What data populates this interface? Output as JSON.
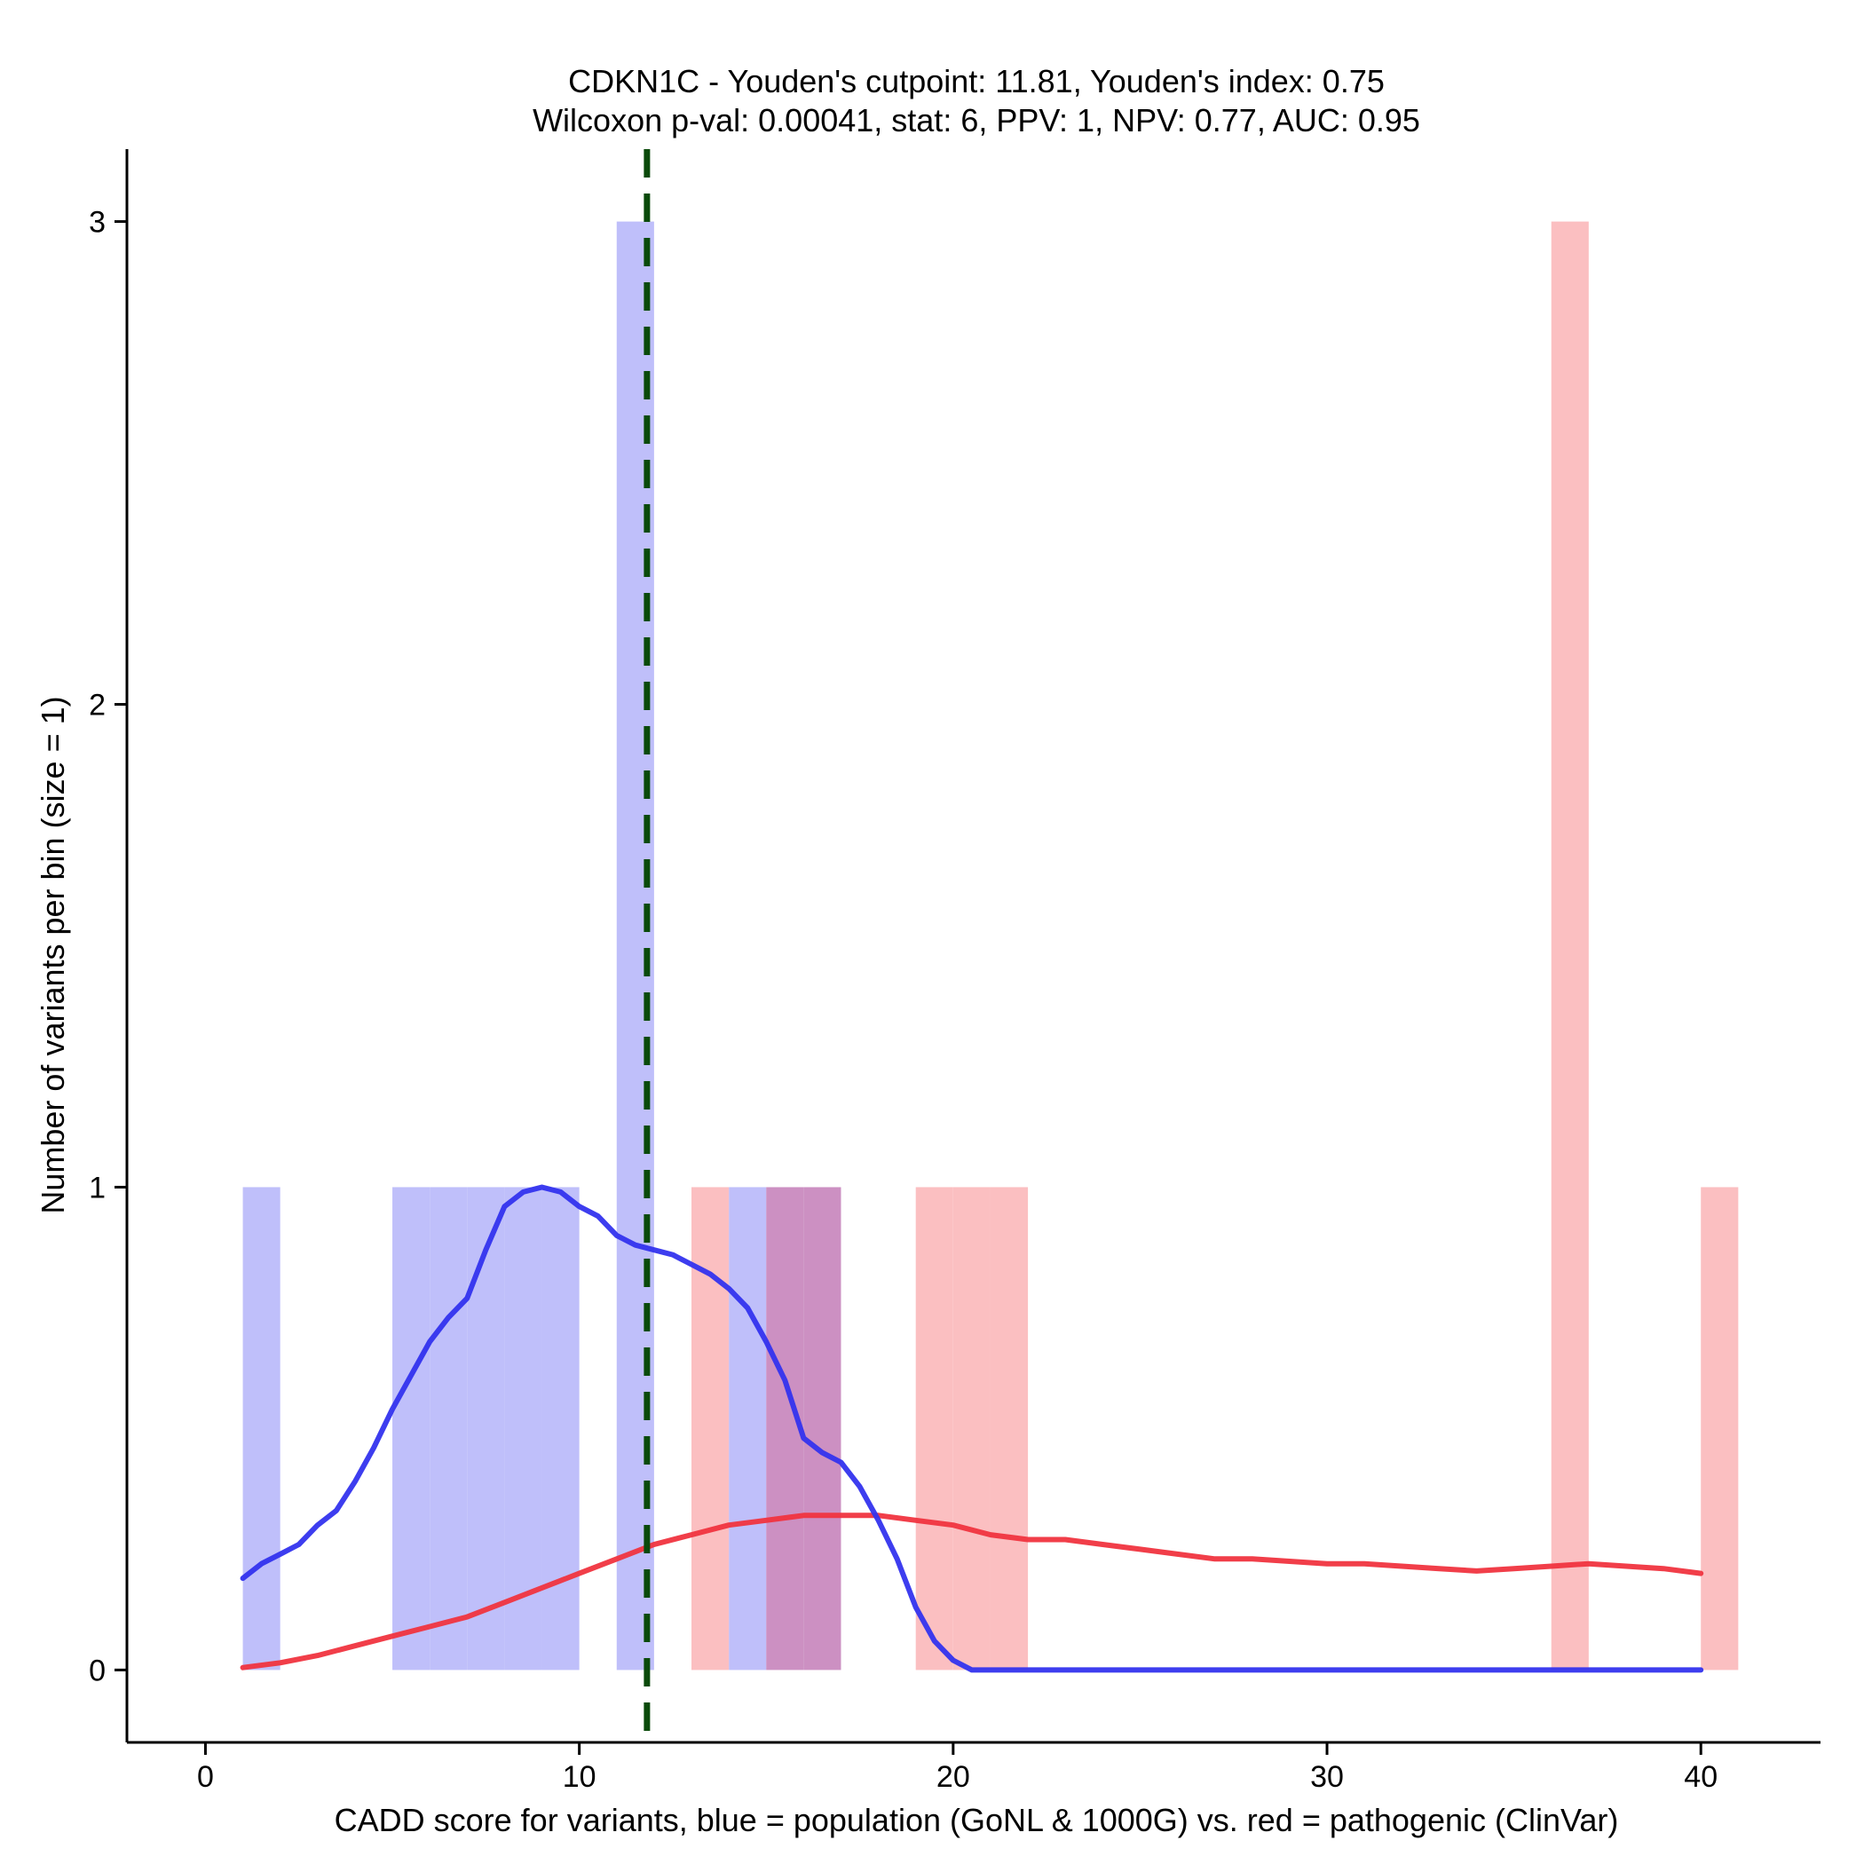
{
  "chart_data": {
    "type": "bar",
    "title_line1": "CDKN1C - Youden's cutpoint: 11.81, Youden's index: 0.75",
    "title_line2": "Wilcoxon p-val: 0.00041, stat: 6, PPV: 1, NPV: 0.77, AUC: 0.95",
    "xlabel": "CADD score for variants, blue = population (GoNL & 1000G) vs. red = pathogenic (ClinVar)",
    "ylabel": "Number of variants per bin (size = 1)",
    "xlim": [
      -2.1,
      43.2
    ],
    "ylim": [
      -0.15,
      3.15
    ],
    "x_ticks": [
      0,
      10,
      20,
      30,
      40
    ],
    "y_ticks": [
      0,
      1,
      2,
      3
    ],
    "cutpoint": 11.81,
    "colors": {
      "population_bar": "#bfbffa",
      "pathogenic_bar": "#fbbfc1",
      "overlap_bar": "#cc90c2",
      "population_density": "#3333ee",
      "pathogenic_density": "#f0343f",
      "cutpoint_line": "#0a4a0a"
    },
    "series": [
      {
        "name": "population",
        "bins": [
          {
            "x0": 1,
            "x1": 2,
            "count": 1
          },
          {
            "x0": 5,
            "x1": 6,
            "count": 1
          },
          {
            "x0": 6,
            "x1": 7,
            "count": 1
          },
          {
            "x0": 7,
            "x1": 8,
            "count": 1
          },
          {
            "x0": 8,
            "x1": 9,
            "count": 1
          },
          {
            "x0": 9,
            "x1": 10,
            "count": 1
          },
          {
            "x0": 11,
            "x1": 12,
            "count": 3
          },
          {
            "x0": 14,
            "x1": 15,
            "count": 1
          },
          {
            "x0": 15,
            "x1": 16,
            "count": 1
          },
          {
            "x0": 16,
            "x1": 17,
            "count": 1
          }
        ],
        "density": {
          "x": [
            1,
            1.5,
            2,
            2.5,
            3,
            3.5,
            4,
            4.5,
            5,
            5.5,
            6,
            6.5,
            7,
            7.5,
            8,
            8.5,
            9,
            9.5,
            10,
            10.5,
            11,
            11.5,
            12,
            12.5,
            13,
            13.5,
            14,
            14.5,
            15,
            15.5,
            16,
            16.5,
            17,
            17.5,
            18,
            18.5,
            19,
            19.5,
            20,
            20.5,
            21,
            25,
            30,
            35,
            40
          ],
          "y": [
            0.19,
            0.22,
            0.24,
            0.26,
            0.3,
            0.33,
            0.39,
            0.46,
            0.54,
            0.61,
            0.68,
            0.73,
            0.77,
            0.87,
            0.96,
            0.99,
            1.0,
            0.99,
            0.96,
            0.94,
            0.9,
            0.88,
            0.87,
            0.86,
            0.84,
            0.82,
            0.79,
            0.75,
            0.68,
            0.6,
            0.48,
            0.45,
            0.43,
            0.38,
            0.31,
            0.23,
            0.13,
            0.06,
            0.02,
            0.0,
            0.0,
            0.0,
            0.0,
            0.0,
            0.0
          ]
        }
      },
      {
        "name": "pathogenic",
        "bins": [
          {
            "x0": 13,
            "x1": 14,
            "count": 1
          },
          {
            "x0": 15,
            "x1": 16,
            "count": 1
          },
          {
            "x0": 16,
            "x1": 17,
            "count": 1
          },
          {
            "x0": 19,
            "x1": 20,
            "count": 1
          },
          {
            "x0": 20,
            "x1": 21,
            "count": 1
          },
          {
            "x0": 21,
            "x1": 22,
            "count": 1
          },
          {
            "x0": 36,
            "x1": 37,
            "count": 3
          },
          {
            "x0": 40,
            "x1": 41,
            "count": 1
          }
        ],
        "density": {
          "x": [
            1,
            2,
            3,
            4,
            5,
            6,
            7,
            8,
            9,
            10,
            11,
            12,
            13,
            14,
            15,
            16,
            17,
            18,
            19,
            20,
            21,
            22,
            23,
            24,
            25,
            26,
            27,
            28,
            29,
            30,
            31,
            32,
            33,
            34,
            35,
            36,
            37,
            38,
            39,
            40
          ],
          "y": [
            0.005,
            0.015,
            0.03,
            0.05,
            0.07,
            0.09,
            0.11,
            0.14,
            0.17,
            0.2,
            0.23,
            0.26,
            0.28,
            0.3,
            0.31,
            0.32,
            0.32,
            0.32,
            0.31,
            0.3,
            0.28,
            0.27,
            0.27,
            0.26,
            0.25,
            0.24,
            0.23,
            0.23,
            0.225,
            0.22,
            0.22,
            0.215,
            0.21,
            0.205,
            0.21,
            0.215,
            0.22,
            0.215,
            0.21,
            0.2
          ]
        }
      }
    ]
  }
}
